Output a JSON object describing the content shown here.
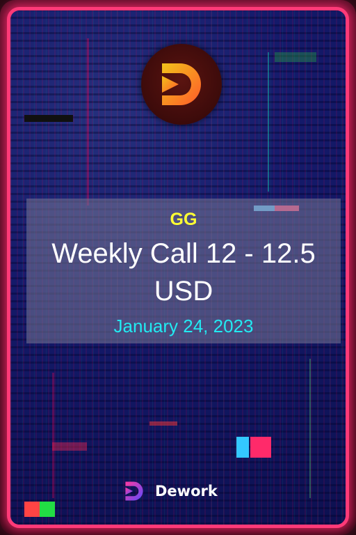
{
  "card": {
    "token": "GG",
    "title": "Weekly Call 12 - 12.5 USD",
    "date": "January 24, 2023"
  },
  "footer": {
    "brand": "Dework"
  },
  "colors": {
    "frame": "#ff3a78",
    "token": "#ffff33",
    "title": "#ffffff",
    "date": "#22eaf2"
  },
  "icons": [
    "dework-logo-icon",
    "dework-small-logo-icon"
  ]
}
